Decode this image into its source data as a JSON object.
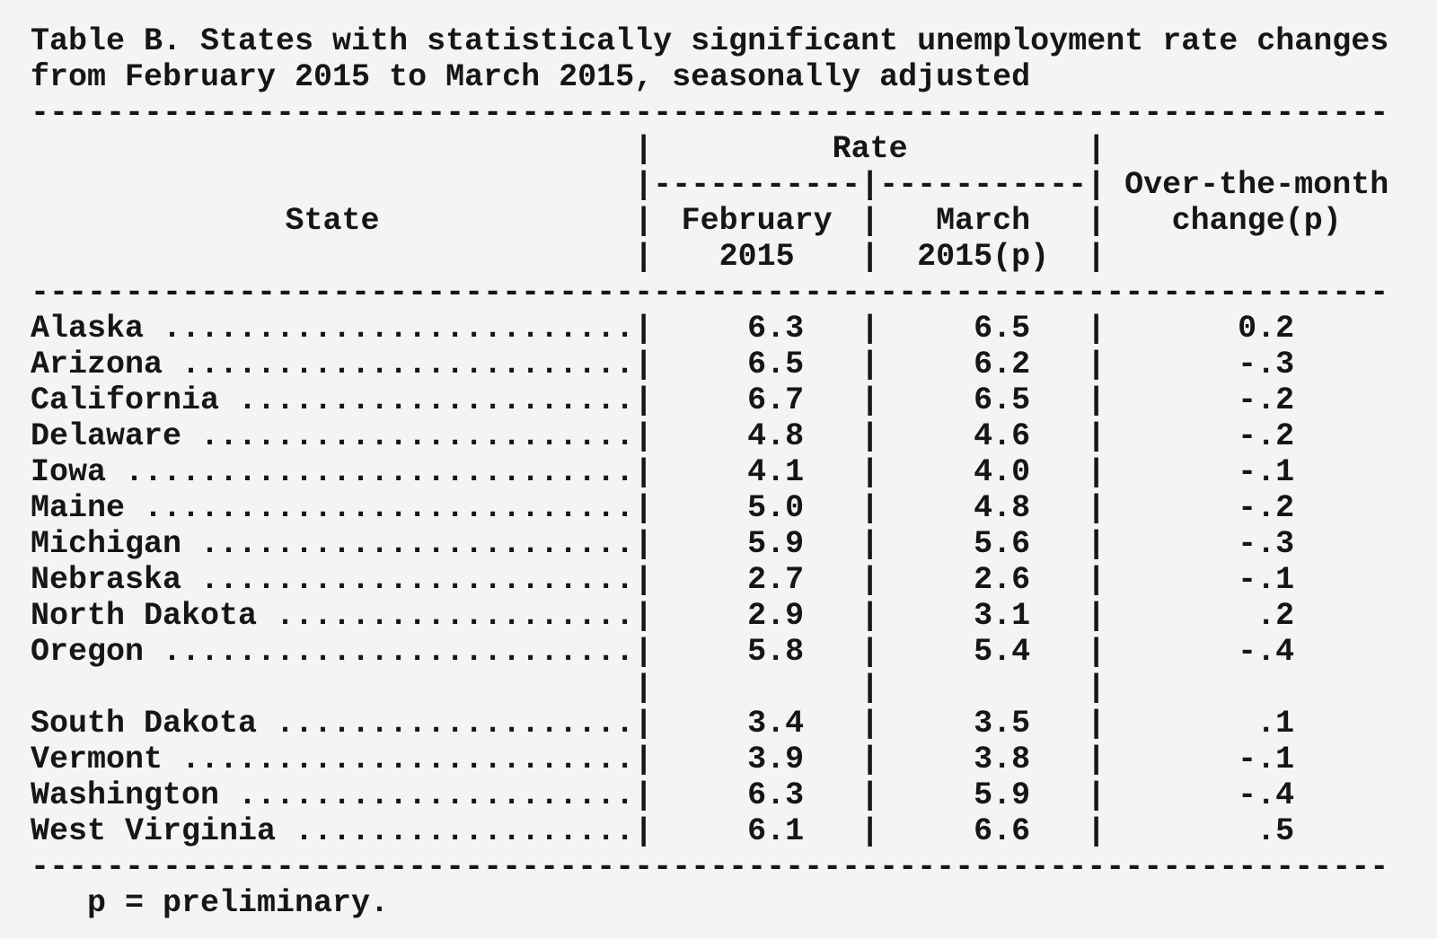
{
  "page": {
    "background_color": "#f4f4f2",
    "text_color": "#161616"
  },
  "table": {
    "title_line1": "Table B. States with statistically significant unemployment rate changes",
    "title_line2": "from February 2015 to March 2015, seasonally adjusted",
    "rule_full": "------------------------------------------------------------------------",
    "rule_seg": "-----------",
    "pipe": "|",
    "dot_leader": " .............................................",
    "header": {
      "state_label": "State",
      "rate_label": "Rate",
      "feb_line1": "February",
      "feb_line2": "2015",
      "mar_line1": "March",
      "mar_line2": "2015(p)",
      "chg_line1": "Over-the-month",
      "chg_line2": "change(p)"
    },
    "rows_group1": [
      {
        "state": "Alaska",
        "feb": "6.3",
        "mar": "6.5",
        "chg": "0.2"
      },
      {
        "state": "Arizona",
        "feb": "6.5",
        "mar": "6.2",
        "chg": "-.3"
      },
      {
        "state": "California",
        "feb": "6.7",
        "mar": "6.5",
        "chg": "-.2"
      },
      {
        "state": "Delaware",
        "feb": "4.8",
        "mar": "4.6",
        "chg": "-.2"
      },
      {
        "state": "Iowa",
        "feb": "4.1",
        "mar": "4.0",
        "chg": "-.1"
      },
      {
        "state": "Maine",
        "feb": "5.0",
        "mar": "4.8",
        "chg": "-.2"
      },
      {
        "state": "Michigan",
        "feb": "5.9",
        "mar": "5.6",
        "chg": "-.3"
      },
      {
        "state": "Nebraska",
        "feb": "2.7",
        "mar": "2.6",
        "chg": "-.1"
      },
      {
        "state": "North Dakota",
        "feb": "2.9",
        "mar": "3.1",
        "chg": ".2"
      },
      {
        "state": "Oregon",
        "feb": "5.8",
        "mar": "5.4",
        "chg": "-.4"
      }
    ],
    "rows_group2": [
      {
        "state": "South Dakota",
        "feb": "3.4",
        "mar": "3.5",
        "chg": ".1"
      },
      {
        "state": "Vermont",
        "feb": "3.9",
        "mar": "3.8",
        "chg": "-.1"
      },
      {
        "state": "Washington",
        "feb": "6.3",
        "mar": "5.9",
        "chg": "-.4"
      },
      {
        "state": "West Virginia",
        "feb": "6.1",
        "mar": "6.6",
        "chg": ".5"
      }
    ],
    "footnote": "p = preliminary."
  }
}
